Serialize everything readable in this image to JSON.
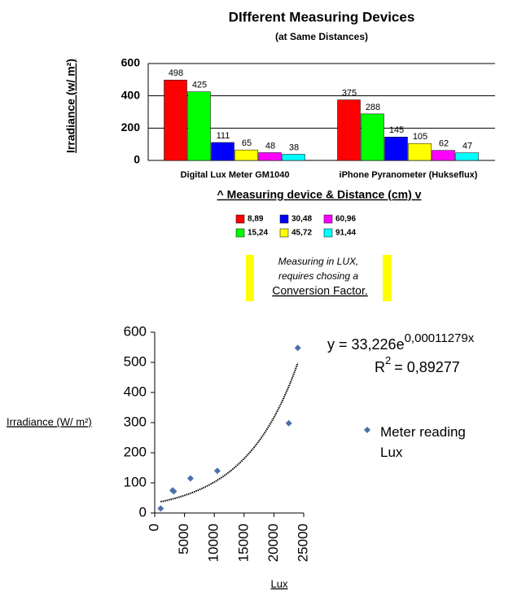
{
  "chart_data": [
    {
      "type": "bar",
      "title": "DIfferent Measuring Devices",
      "subtitle": "(at Same Distances)",
      "y_label": "Irradiance (w/ m²)",
      "x_label": "^ Measuring device & Distance (cm) v",
      "categories": [
        "Digital Lux Meter GM1040",
        "iPhone Pyranometer (Hukseflux)"
      ],
      "series": [
        {
          "name": "8,89",
          "color": "#ff0000",
          "values": [
            498,
            375
          ]
        },
        {
          "name": "15,24",
          "color": "#00ff00",
          "values": [
            425,
            288
          ]
        },
        {
          "name": "30,48",
          "color": "#0000ff",
          "values": [
            111,
            145
          ]
        },
        {
          "name": "45,72",
          "color": "#ffff00",
          "values": [
            65,
            105
          ]
        },
        {
          "name": "60,96",
          "color": "#ff00ff",
          "values": [
            48,
            62
          ]
        },
        {
          "name": "91,44",
          "color": "#00ffff",
          "values": [
            38,
            47
          ]
        }
      ],
      "ylim": [
        0,
        600
      ],
      "yticks": [
        0,
        200,
        400,
        600
      ],
      "grid": true,
      "data_labels": true
    },
    {
      "type": "scatter",
      "y_label": "Irradiance (W/ m²)",
      "x_label": "Lux",
      "series": [
        {
          "name": "Meter reading Lux",
          "color": "#4a72a8",
          "x": [
            1000,
            3000,
            3200,
            6000,
            10500,
            22500,
            24000
          ],
          "values": [
            15,
            75,
            72,
            115,
            140,
            298,
            548
          ]
        }
      ],
      "xlim": [
        0,
        25000
      ],
      "xticks": [
        0,
        5000,
        10000,
        15000,
        20000,
        25000
      ],
      "ylim": [
        0,
        600
      ],
      "yticks": [
        0,
        100,
        200,
        300,
        400,
        500,
        600
      ],
      "trendline": {
        "kind": "exponential",
        "a": 33.226,
        "b": 0.00011279,
        "equation": "y = 33,226e",
        "exponent": "0,00011279x",
        "r2_base": "R",
        "r2_power": "2",
        "r2_value": "= 0,89277"
      },
      "legend": "right"
    }
  ],
  "note": {
    "lines": [
      "Measuring in LUX,",
      "requires chosing a",
      "Conversion Factor."
    ]
  }
}
